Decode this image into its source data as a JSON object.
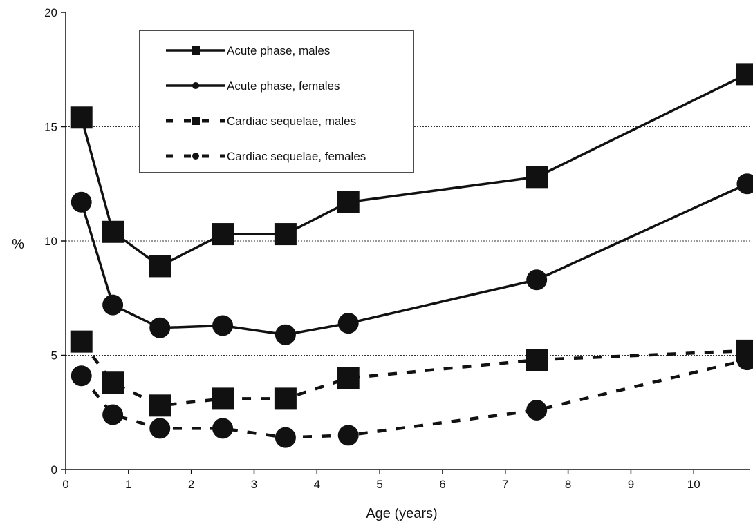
{
  "chart_data": {
    "type": "line",
    "title": "",
    "xlabel": "Age (years)",
    "ylabel": "%",
    "xlim": [
      0,
      10.9
    ],
    "ylim": [
      0,
      20
    ],
    "xticks": [
      0,
      1,
      2,
      3,
      4,
      5,
      6,
      7,
      8,
      9,
      10
    ],
    "yticks": [
      0,
      5,
      10,
      15,
      20
    ],
    "grid": "horizontal dotted at 5, 10, 15",
    "legend_position": "top-left",
    "x": [
      0.25,
      0.75,
      1.5,
      2.5,
      3.5,
      4.5,
      7.5,
      10.85
    ],
    "series": [
      {
        "name": "Acute phase, males",
        "line": "solid",
        "marker": "square",
        "values": [
          15.4,
          10.4,
          8.9,
          10.3,
          10.3,
          11.7,
          12.8,
          17.3
        ]
      },
      {
        "name": "Acute phase, females",
        "line": "solid",
        "marker": "circle",
        "values": [
          11.7,
          7.2,
          6.2,
          6.3,
          5.9,
          6.4,
          8.3,
          12.5
        ]
      },
      {
        "name": "Cardiac sequelae, males",
        "line": "dashed",
        "marker": "square",
        "values": [
          5.6,
          3.8,
          2.8,
          3.1,
          3.1,
          4.0,
          4.8,
          5.2
        ]
      },
      {
        "name": "Cardiac sequelae, females",
        "line": "dashed",
        "marker": "circle",
        "values": [
          4.1,
          2.4,
          1.8,
          1.8,
          1.4,
          1.5,
          2.6,
          4.8
        ]
      }
    ]
  }
}
